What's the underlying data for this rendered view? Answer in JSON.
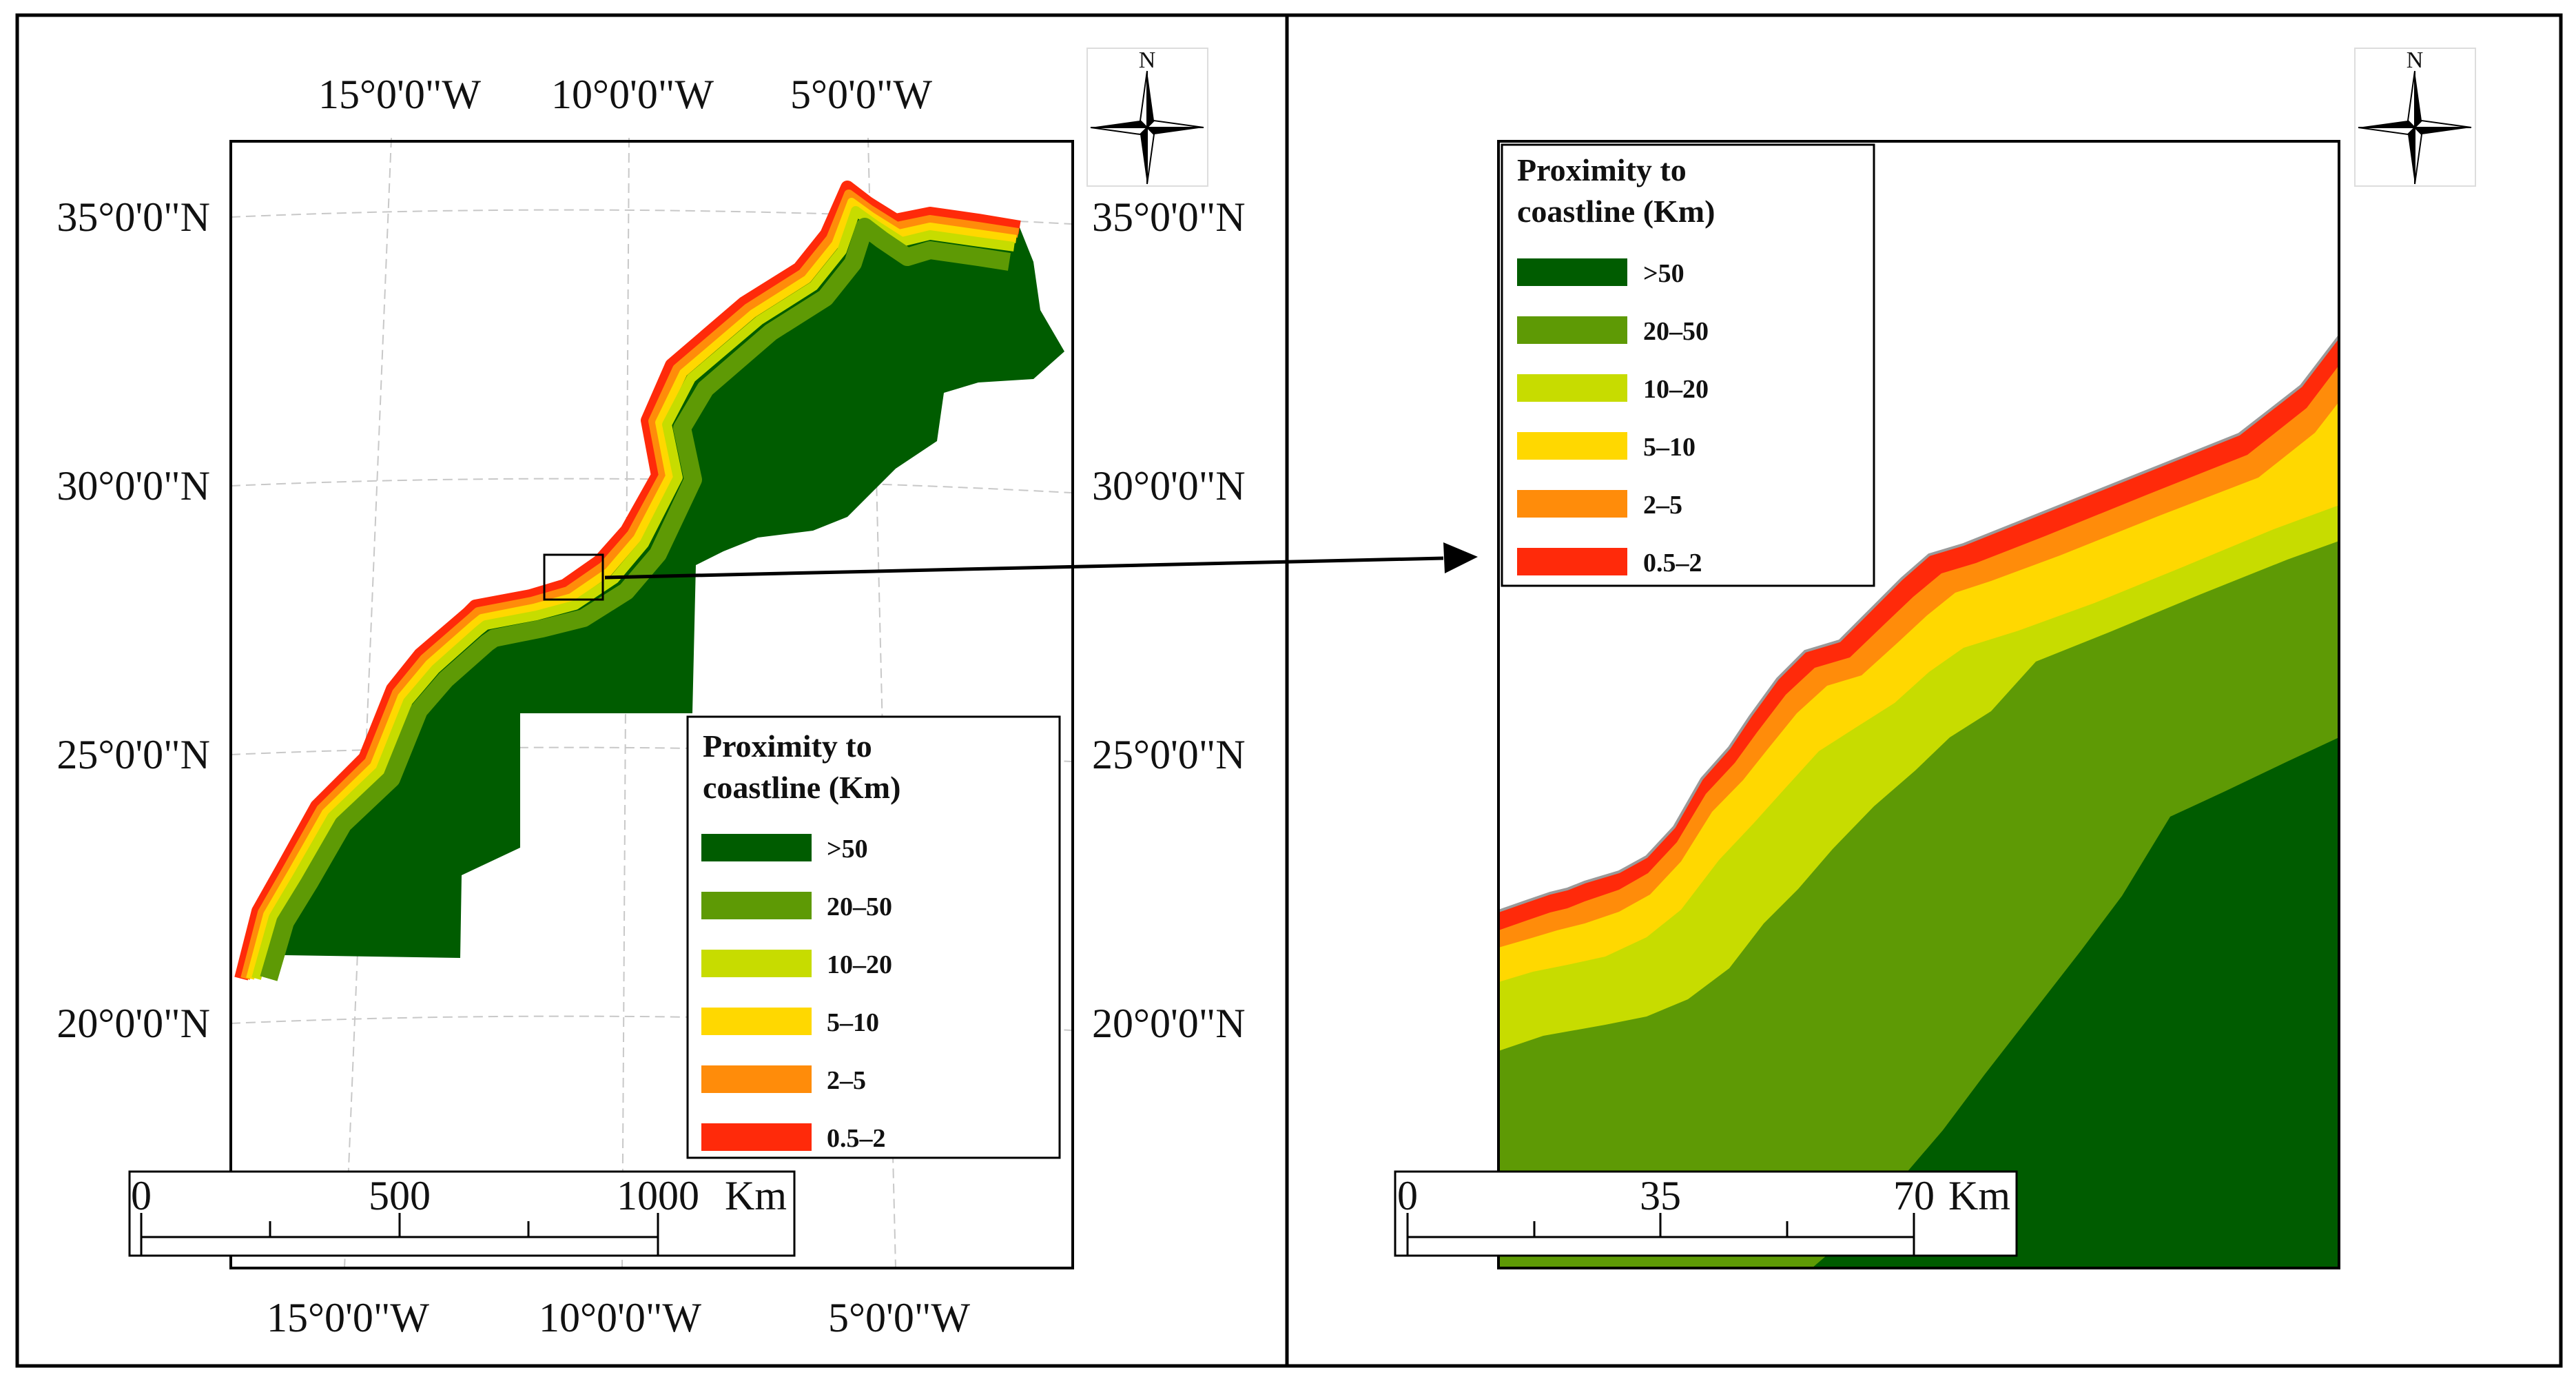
{
  "colors": {
    "c_gt50": "#005c00",
    "c_20_50": "#5e9a05",
    "c_10_20": "#c7dc00",
    "c_5_10": "#ffd800",
    "c_2_5": "#ff8c0a",
    "c_05_2": "#ff2a0a",
    "frame": "#000000",
    "graticule": "#c8c8c8"
  },
  "legend": {
    "title_line1": "Proximity to",
    "title_line2": "coastline (Km)",
    "items": [
      ">50",
      "20–50",
      "10–20",
      "5–10",
      "2–5",
      "0.5–2"
    ]
  },
  "left_map": {
    "top_lon_labels": [
      "15°0'0\"W",
      "10°0'0\"W",
      "5°0'0\"W"
    ],
    "bottom_lon_labels": [
      "15°0'0\"W",
      "10°0'0\"W",
      "5°0'0\"W"
    ],
    "left_lat_labels": [
      "35°0'0\"N",
      "30°0'0\"N",
      "25°0'0\"N",
      "20°0'0\"N"
    ],
    "right_lat_labels": [
      "35°0'0\"N",
      "30°0'0\"N",
      "25°0'0\"N",
      "20°0'0\"N"
    ],
    "scale": {
      "ticks": [
        "0",
        "500",
        "1000"
      ],
      "unit": "Km"
    },
    "north": "N"
  },
  "right_map": {
    "scale": {
      "ticks": [
        "0",
        "35",
        "70"
      ],
      "unit": "Km"
    },
    "north": "N"
  }
}
